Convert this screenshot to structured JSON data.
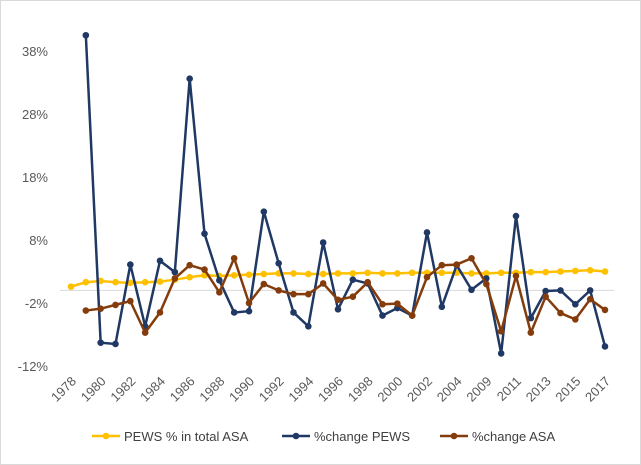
{
  "chart_data": {
    "type": "line",
    "grid": false,
    "legend_position": "bottom",
    "x": [
      "1978",
      "1979",
      "1980",
      "1981",
      "1982",
      "1983",
      "1984",
      "1985",
      "1986",
      "1987",
      "1988",
      "1989",
      "1990",
      "1991",
      "1992",
      "1993",
      "1994",
      "1995",
      "1996",
      "1997",
      "1998",
      "1999",
      "2000",
      "2001",
      "2002",
      "2003",
      "2004",
      "2005",
      "2009",
      "2010",
      "2011",
      "2012",
      "2013",
      "2014",
      "2015",
      "2016",
      "2017"
    ],
    "x_tick_labels": [
      "1978",
      "1980",
      "1982",
      "1984",
      "1986",
      "1988",
      "1990",
      "1992",
      "1994",
      "1996",
      "1998",
      "2000",
      "2002",
      "2004",
      "2009",
      "2011",
      "2013",
      "2015",
      "2017"
    ],
    "y_ticks": [
      38,
      28,
      18,
      8,
      -2,
      -12
    ],
    "y_tick_labels": [
      "38%",
      "28%",
      "18%",
      "8%",
      "-2%",
      "-12%"
    ],
    "ylim": [
      -12,
      43
    ],
    "y_unit": "%",
    "series": [
      {
        "name": "PEWS  % in total ASA",
        "color": "#FFC000",
        "values": [
          0.6,
          1.3,
          1.5,
          1.3,
          1.2,
          1.3,
          1.4,
          1.7,
          2.1,
          2.4,
          2.3,
          2.4,
          2.5,
          2.6,
          2.7,
          2.7,
          2.6,
          2.6,
          2.7,
          2.7,
          2.8,
          2.7,
          2.7,
          2.8,
          2.8,
          2.8,
          2.8,
          2.7,
          2.7,
          2.8,
          2.8,
          2.9,
          2.9,
          3.0,
          3.1,
          3.2,
          3.0
        ]
      },
      {
        "name": "%change PEWS",
        "color": "#203864",
        "values": [
          null,
          40.5,
          -8.3,
          -8.5,
          4.1,
          -5.7,
          4.7,
          2.9,
          33.6,
          9.0,
          1.6,
          -3.5,
          -3.3,
          12.5,
          4.3,
          -3.5,
          -5.7,
          7.6,
          -3.0,
          1.7,
          1.1,
          -4.0,
          -2.8,
          -4.0,
          9.2,
          -2.6,
          4.0,
          0.1,
          1.9,
          -10.0,
          11.8,
          -4.4,
          -0.1,
          0.0,
          -2.2,
          0.0,
          -8.9
        ]
      },
      {
        "name": "%change ASA",
        "color": "#843C0C",
        "values": [
          null,
          -3.2,
          -2.9,
          -2.3,
          -1.7,
          -6.7,
          -3.5,
          1.9,
          4.0,
          3.3,
          -0.3,
          5.1,
          -2.0,
          1.0,
          0.0,
          -0.6,
          -0.6,
          1.1,
          -1.5,
          -1.0,
          1.3,
          -2.2,
          -2.1,
          -4.0,
          2.1,
          4.0,
          4.1,
          5.1,
          1.0,
          -6.5,
          2.3,
          -6.7,
          -1.0,
          -3.6,
          -4.6,
          -1.4,
          -3.1
        ]
      }
    ]
  }
}
